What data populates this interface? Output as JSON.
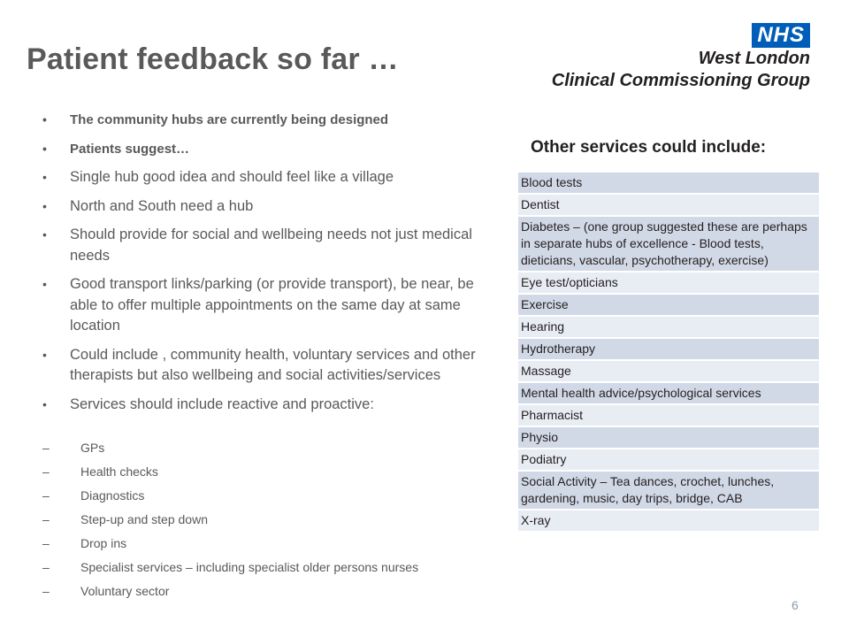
{
  "slide": {
    "title": "Patient feedback so far …",
    "page_number": "6"
  },
  "logo": {
    "badge": "NHS",
    "line1": "West London",
    "line2": "Clinical Commissioning Group"
  },
  "bullets": [
    "The community  hubs are currently being designed",
    "Patients suggest…",
    "Single hub good idea and should feel like a village",
    "North and South need a hub",
    "Should provide for social and wellbeing needs not just medical needs",
    "Good transport links/parking (or provide transport), be near, be able to offer multiple appointments on the same day at same location",
    "Could include , community health, voluntary services and other therapists but also wellbeing and social activities/services",
    "Services should include reactive and proactive:"
  ],
  "sub_bullets": [
    "GPs",
    "Health checks",
    "Diagnostics",
    "Step-up and step down",
    "Drop ins",
    "Specialist services – including specialist older persons nurses",
    "Voluntary sector"
  ],
  "other_services": {
    "heading": "Other services could include:",
    "items": [
      "Blood tests",
      "Dentist",
      "Diabetes – (one group suggested these are perhaps in separate hubs of excellence - Blood tests, dieticians, vascular, psychotherapy, exercise)",
      "Eye test/opticians",
      "Exercise",
      "Hearing",
      "Hydrotherapy",
      "Massage",
      "Mental health advice/psychological services",
      "Pharmacist",
      "Physio",
      "Podiatry",
      "Social Activity – Tea dances, crochet, lunches, gardening, music, day trips, bridge, CAB",
      "X-ray"
    ]
  },
  "colors": {
    "nhs_blue": "#005EB8",
    "text_gray": "#595959",
    "row_dark": "#d2d9e6",
    "row_light": "#e8ecf3"
  }
}
